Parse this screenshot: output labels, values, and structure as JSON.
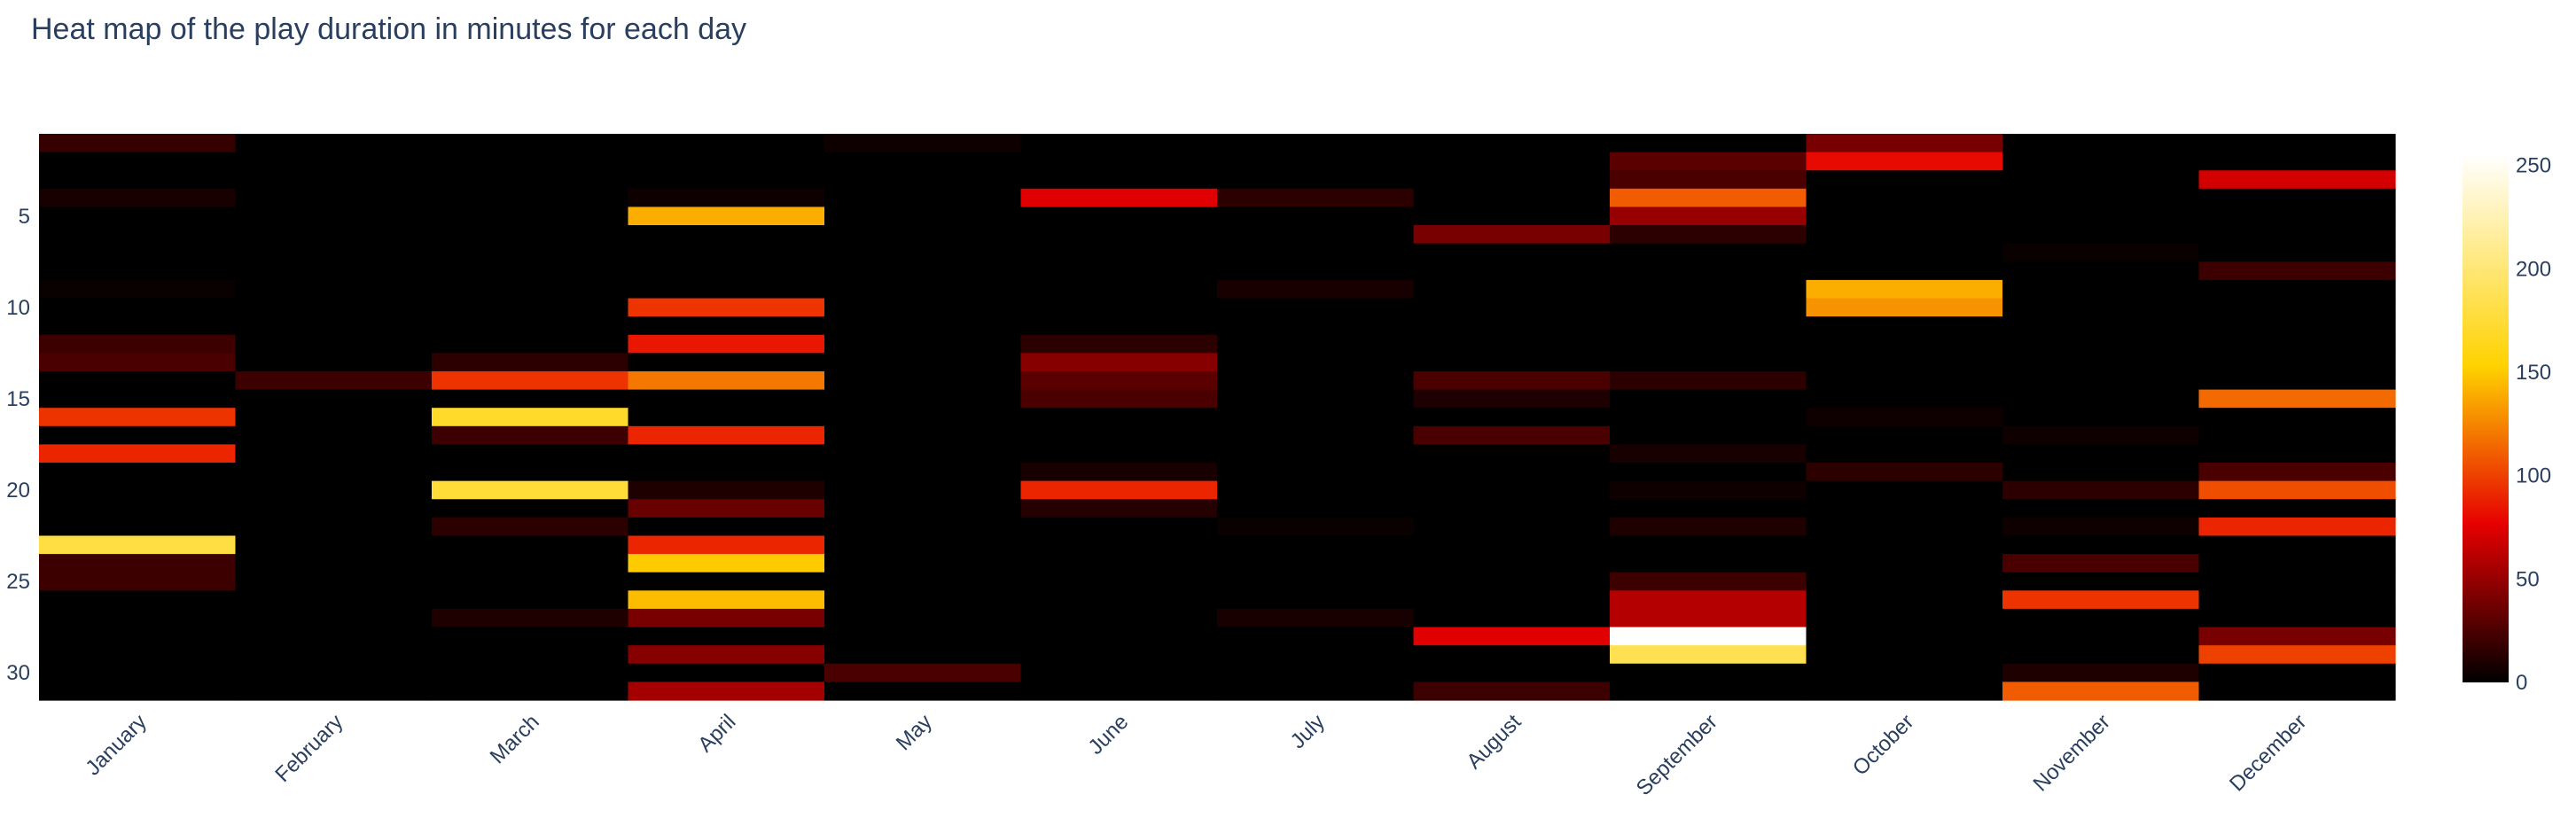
{
  "chart_data": {
    "type": "heatmap",
    "title": "Heat map of the play duration in minutes for each day",
    "xlabel": "",
    "ylabel": "",
    "x": [
      "January",
      "February",
      "March",
      "April",
      "May",
      "June",
      "July",
      "August",
      "September",
      "October",
      "November",
      "December"
    ],
    "y": [
      1,
      2,
      3,
      4,
      5,
      6,
      7,
      8,
      9,
      10,
      11,
      12,
      13,
      14,
      15,
      16,
      17,
      18,
      19,
      20,
      21,
      22,
      23,
      24,
      25,
      26,
      27,
      28,
      29,
      30,
      31
    ],
    "y_ticks": [
      5,
      10,
      15,
      20,
      25,
      30
    ],
    "y_reversed": true,
    "colorscale": "hot",
    "zlim": [
      0,
      255
    ],
    "colorbar_ticks": [
      0,
      50,
      100,
      150,
      200,
      250
    ],
    "z": [
      [
        18,
        0,
        0,
        0,
        5,
        0,
        0,
        0,
        0,
        40,
        0,
        0
      ],
      [
        0,
        0,
        0,
        0,
        0,
        0,
        0,
        0,
        30,
        80,
        0,
        0
      ],
      [
        0,
        0,
        0,
        0,
        0,
        0,
        0,
        0,
        25,
        0,
        0,
        70
      ],
      [
        8,
        0,
        0,
        5,
        0,
        75,
        15,
        0,
        110,
        0,
        0,
        0
      ],
      [
        0,
        0,
        0,
        140,
        0,
        0,
        0,
        0,
        50,
        0,
        0,
        0
      ],
      [
        0,
        0,
        0,
        0,
        0,
        0,
        0,
        40,
        15,
        0,
        0,
        0
      ],
      [
        0,
        0,
        0,
        0,
        0,
        0,
        0,
        0,
        0,
        0,
        3,
        0
      ],
      [
        0,
        0,
        0,
        0,
        0,
        0,
        0,
        0,
        0,
        0,
        0,
        20
      ],
      [
        3,
        0,
        0,
        0,
        0,
        0,
        8,
        0,
        0,
        140,
        0,
        0
      ],
      [
        0,
        0,
        0,
        95,
        0,
        0,
        0,
        0,
        0,
        130,
        0,
        0
      ],
      [
        0,
        0,
        0,
        0,
        0,
        0,
        0,
        0,
        0,
        0,
        0,
        0
      ],
      [
        20,
        0,
        0,
        85,
        0,
        15,
        0,
        0,
        0,
        0,
        0,
        0
      ],
      [
        25,
        0,
        15,
        0,
        0,
        45,
        0,
        0,
        0,
        0,
        0,
        0
      ],
      [
        0,
        20,
        95,
        120,
        0,
        30,
        0,
        25,
        15,
        0,
        0,
        0
      ],
      [
        0,
        0,
        0,
        0,
        0,
        25,
        0,
        10,
        0,
        0,
        0,
        115
      ],
      [
        95,
        0,
        170,
        0,
        0,
        0,
        0,
        0,
        0,
        5,
        0,
        0
      ],
      [
        0,
        0,
        20,
        90,
        0,
        0,
        0,
        25,
        0,
        0,
        5,
        0
      ],
      [
        90,
        0,
        0,
        0,
        0,
        0,
        0,
        0,
        8,
        0,
        0,
        0
      ],
      [
        0,
        0,
        0,
        0,
        0,
        8,
        0,
        0,
        0,
        15,
        0,
        25
      ],
      [
        0,
        0,
        175,
        10,
        0,
        90,
        0,
        0,
        5,
        0,
        15,
        105
      ],
      [
        0,
        0,
        0,
        35,
        0,
        12,
        0,
        0,
        0,
        0,
        0,
        0
      ],
      [
        0,
        0,
        15,
        0,
        0,
        0,
        3,
        0,
        10,
        0,
        5,
        90
      ],
      [
        180,
        0,
        0,
        90,
        0,
        0,
        0,
        0,
        0,
        0,
        0,
        0
      ],
      [
        20,
        0,
        0,
        150,
        0,
        0,
        0,
        0,
        0,
        0,
        25,
        0
      ],
      [
        20,
        0,
        0,
        0,
        0,
        0,
        0,
        0,
        20,
        0,
        0,
        0
      ],
      [
        0,
        0,
        0,
        145,
        0,
        0,
        0,
        0,
        60,
        0,
        95,
        0
      ],
      [
        0,
        0,
        10,
        40,
        0,
        0,
        8,
        0,
        60,
        0,
        0,
        0
      ],
      [
        0,
        0,
        0,
        0,
        0,
        0,
        0,
        75,
        255,
        0,
        0,
        40
      ],
      [
        0,
        0,
        0,
        45,
        0,
        0,
        0,
        0,
        185,
        0,
        0,
        100
      ],
      [
        0,
        0,
        0,
        0,
        25,
        0,
        0,
        0,
        0,
        0,
        10,
        0
      ],
      [
        0,
        0,
        0,
        55,
        0,
        0,
        0,
        20,
        0,
        0,
        110,
        0
      ]
    ]
  }
}
